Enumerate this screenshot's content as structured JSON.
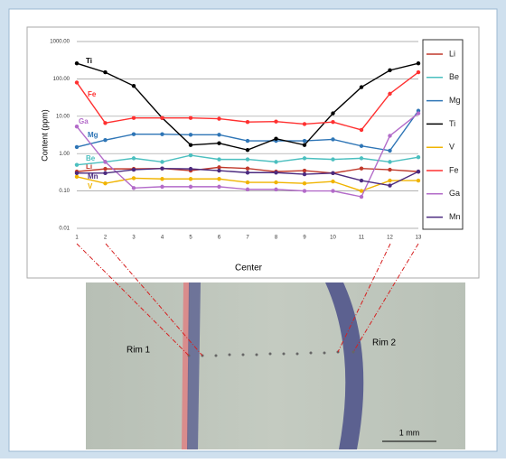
{
  "chart_data": {
    "type": "line",
    "y_label": "Content (ppm)",
    "x_label": "Center",
    "x": [
      1,
      2,
      3,
      4,
      5,
      6,
      7,
      8,
      9,
      10,
      11,
      12,
      13
    ],
    "xlim": [
      1,
      13
    ],
    "xticks": [
      1,
      2,
      3,
      4,
      5,
      6,
      7,
      8,
      9,
      10,
      11,
      12,
      13
    ],
    "ylim": [
      0.01,
      1000
    ],
    "yscale": "log",
    "yticks": [
      {
        "value": 0.01,
        "label": "0.01"
      },
      {
        "value": 0.1,
        "label": "0.10"
      },
      {
        "value": 1,
        "label": "1.00"
      },
      {
        "value": 10,
        "label": "10.00"
      },
      {
        "value": 100,
        "label": "100.00"
      },
      {
        "value": 1000,
        "label": "1000.00"
      }
    ],
    "grid": true,
    "legend": "right",
    "series": [
      {
        "name": "Li",
        "color": "#c0392b",
        "values": [
          0.33,
          0.39,
          0.39,
          0.4,
          0.35,
          0.43,
          0.4,
          0.33,
          0.35,
          0.3,
          0.4,
          0.37,
          0.33
        ]
      },
      {
        "name": "Be",
        "color": "#4bbfbf",
        "values": [
          0.5,
          0.6,
          0.75,
          0.6,
          0.9,
          0.7,
          0.7,
          0.6,
          0.75,
          0.7,
          0.75,
          0.6,
          0.8
        ]
      },
      {
        "name": "Mg",
        "color": "#2e75b6",
        "values": [
          1.5,
          2.3,
          3.3,
          3.3,
          3.2,
          3.2,
          2.2,
          2.2,
          2.2,
          2.4,
          1.6,
          1.2,
          14
        ]
      },
      {
        "name": "Ti",
        "color": "#000000",
        "values": [
          260,
          150,
          65,
          9,
          1.7,
          1.9,
          1.25,
          2.5,
          1.7,
          12,
          60,
          170,
          260
        ]
      },
      {
        "name": "V",
        "color": "#f0b400",
        "values": [
          0.24,
          0.16,
          0.22,
          0.21,
          0.21,
          0.21,
          0.17,
          0.17,
          0.16,
          0.18,
          0.1,
          0.19,
          0.19
        ]
      },
      {
        "name": "Fe",
        "color": "#ff3030",
        "values": [
          80,
          6.6,
          9,
          9,
          9,
          8.6,
          7,
          7.2,
          6.2,
          7,
          4.3,
          40,
          150
        ]
      },
      {
        "name": "Ga",
        "color": "#b36bc9",
        "values": [
          5.3,
          0.6,
          0.12,
          0.13,
          0.13,
          0.13,
          0.11,
          0.11,
          0.1,
          0.1,
          0.07,
          3,
          12
        ]
      },
      {
        "name": "Mn",
        "color": "#4b2a7f",
        "values": [
          0.3,
          0.3,
          0.37,
          0.4,
          0.39,
          0.35,
          0.31,
          0.31,
          0.28,
          0.3,
          0.19,
          0.14,
          0.33
        ]
      }
    ]
  },
  "image": {
    "rim_left": "Rim 1",
    "rim_right": "Rim 2",
    "scale_bar": "1 mm"
  }
}
